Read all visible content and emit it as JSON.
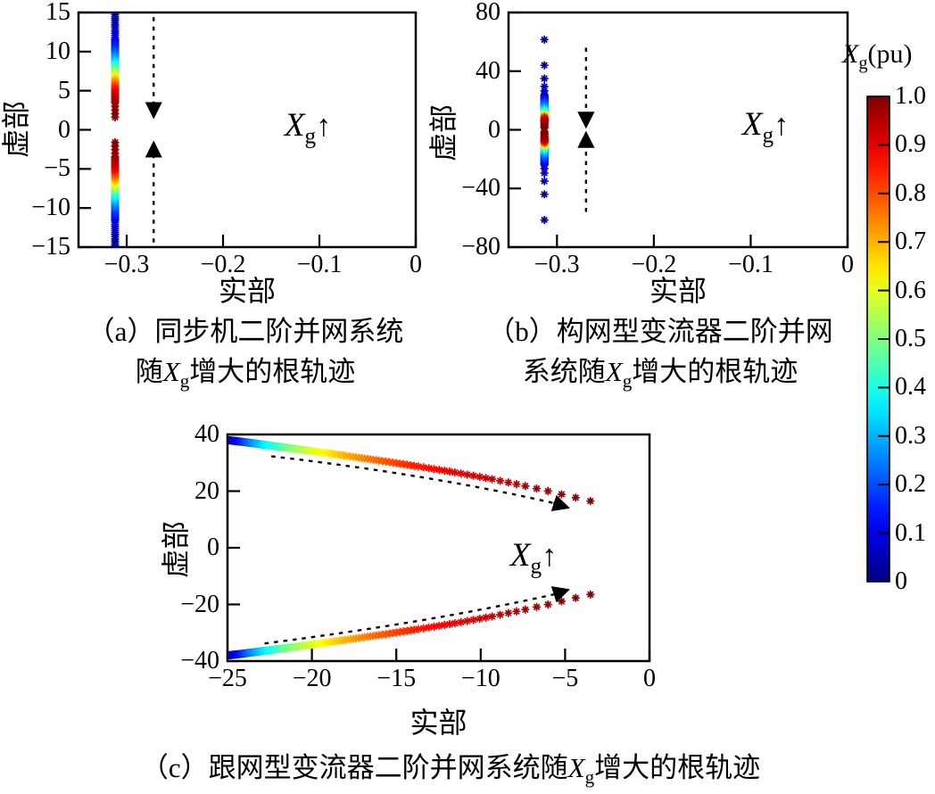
{
  "figure": {
    "background": "#ffffff",
    "line_color": "#000000"
  },
  "captions": {
    "a": {
      "line1": "（a）同步机二阶并网系统",
      "line2_prefix": "随",
      "var": "X",
      "var_sub": "g",
      "line2_suffix": "增大的根轨迹"
    },
    "b": {
      "line1": "（b）构网型变流器二阶并网",
      "line2_prefix": "系统随",
      "var": "X",
      "var_sub": "g",
      "line2_suffix": "增大的根轨迹"
    },
    "c": {
      "prefix": "（c）跟网型变流器二阶并网系统随",
      "var": "X",
      "var_sub": "g",
      "suffix": "增大的根轨迹"
    }
  },
  "annotation": {
    "var": "X",
    "sub": "g",
    "arrow": "↑"
  },
  "colorbar": {
    "title_var": "X",
    "title_sub": "g",
    "title_unit": "(pu)",
    "min": 0,
    "max": 1,
    "colormap": "jet",
    "tick_values": [
      1.0,
      0.9,
      0.8,
      0.7,
      0.6,
      0.5,
      0.4,
      0.3,
      0.2,
      0.1,
      0
    ],
    "tick_labels": [
      "1.0",
      "0.9",
      "0.8",
      "0.7",
      "0.6",
      "0.5",
      "0.4",
      "0.3",
      "0.2",
      "0.1",
      "0"
    ]
  },
  "chart_data": [
    {
      "id": "a",
      "type": "scatter",
      "title": "(a) 同步机二阶并网系统随Xg增大的根轨迹",
      "xlabel": "实部",
      "ylabel": "虚部",
      "xlim": [
        -0.35,
        0
      ],
      "ylim": [
        -15,
        15
      ],
      "xticks": [
        -0.3,
        -0.2,
        -0.1,
        0
      ],
      "xtick_labels": [
        "−0.3",
        "−0.2",
        "−0.1",
        "0"
      ],
      "yticks": [
        15,
        10,
        5,
        0,
        -5,
        -10,
        -15
      ],
      "ytick_labels": [
        "15",
        "10",
        "5",
        "0",
        "−5",
        "−10",
        "−15"
      ],
      "color_variable": "Xg (pu), 0=blue → 1=dark red",
      "series": [
        {
          "name": "conjugate pole pair, real ≈ −0.312, |imag| shrinks 15→1.6 as Xg→1",
          "real": -0.312,
          "mirror": true,
          "samples": 130,
          "xg_imag_profile": [
            [
              0,
              15
            ],
            [
              0.1,
              11.6
            ],
            [
              0.2,
              10.0
            ],
            [
              0.3,
              9.0
            ],
            [
              0.4,
              8.2
            ],
            [
              0.5,
              7.5
            ],
            [
              0.6,
              6.9
            ],
            [
              0.7,
              6.3
            ],
            [
              0.8,
              5.6
            ],
            [
              0.87,
              5.0
            ],
            [
              0.93,
              4.4
            ],
            [
              0.97,
              3.4
            ],
            [
              1.0,
              1.6
            ]
          ]
        }
      ],
      "arrows": [
        {
          "x": -0.272,
          "from_im": 14.4,
          "to_im": 3.6,
          "tip_im": 1.8
        },
        {
          "x": -0.272,
          "from_im": -14.4,
          "to_im": -3.6,
          "tip_im": -1.8
        }
      ],
      "annotation_pos": {
        "x": -0.112,
        "y": 0.2
      }
    },
    {
      "id": "b",
      "type": "scatter",
      "title": "(b) 构网型变流器二阶并网系统随Xg增大的根轨迹",
      "xlabel": "实部",
      "ylabel": "虚部",
      "xlim": [
        -0.35,
        0
      ],
      "ylim": [
        -80,
        80
      ],
      "xticks": [
        -0.3,
        -0.2,
        -0.1,
        0
      ],
      "xtick_labels": [
        "−0.3",
        "−0.2",
        "−0.1",
        "0"
      ],
      "yticks": [
        80,
        40,
        0,
        -40,
        -80
      ],
      "ytick_labels": [
        "80",
        "40",
        "0",
        "−40",
        "−80"
      ],
      "color_variable": "Xg (pu), 0=blue → 1=dark red",
      "series": [
        {
          "name": "conjugate pole pair, real ≈ −0.313, |imag| shrinks 24→1.2 over Xg 0.08→1",
          "real": -0.313,
          "mirror": true,
          "samples": 140,
          "xg_imag_profile": [
            [
              0.08,
              24
            ],
            [
              0.15,
              20
            ],
            [
              0.25,
              16
            ],
            [
              0.35,
              13.5
            ],
            [
              0.45,
              11.8
            ],
            [
              0.55,
              10.6
            ],
            [
              0.65,
              9.6
            ],
            [
              0.75,
              8.8
            ],
            [
              0.85,
              8.0
            ],
            [
              0.92,
              7.0
            ],
            [
              0.96,
              5.5
            ],
            [
              1.0,
              1.2
            ]
          ],
          "discrete": [
            [
              0.01,
              61.5
            ],
            [
              0.025,
              44
            ],
            [
              0.04,
              35
            ],
            [
              0.055,
              29.5
            ],
            [
              0.07,
              26.5
            ]
          ]
        }
      ],
      "arrows": [
        {
          "x": -0.27,
          "from_im": 56,
          "to_im": 12,
          "tip_im": 3
        },
        {
          "x": -0.27,
          "from_im": -56,
          "to_im": -12,
          "tip_im": -3
        }
      ],
      "annotation_pos": {
        "x": -0.085,
        "y": 2
      }
    },
    {
      "id": "c",
      "type": "scatter",
      "title": "(c) 跟网型变流器二阶并网系统随Xg增大的根轨迹",
      "xlabel": "实部",
      "ylabel": "虚部",
      "xlim": [
        -25,
        0
      ],
      "ylim": [
        -40,
        40
      ],
      "xticks": [
        -25,
        -20,
        -15,
        -10,
        -5,
        0
      ],
      "xtick_labels": [
        "−25",
        "−20",
        "−15",
        "−10",
        "−5",
        "0"
      ],
      "yticks": [
        40,
        20,
        0,
        -20,
        -40
      ],
      "ytick_labels": [
        "40",
        "20",
        "0",
        "−20",
        "−40"
      ],
      "color_variable": "Xg (pu), 0=blue → 1=dark red",
      "series": [
        {
          "name": "conjugate pole pair, curves from (−25, ±38) to (−3.5, ±16.5) as Xg→1",
          "mirror": true,
          "samples": 150,
          "xg_re_im_profile": [
            [
              0,
              -25,
              38
            ],
            [
              0.12,
              -24.4,
              37.6
            ],
            [
              0.25,
              -23.6,
              37
            ],
            [
              0.38,
              -22.6,
              36.2
            ],
            [
              0.5,
              -21.3,
              35.2
            ],
            [
              0.6,
              -19.8,
              34
            ],
            [
              0.7,
              -18,
              32.5
            ],
            [
              0.78,
              -16,
              30.8
            ],
            [
              0.85,
              -13.8,
              28.8
            ],
            [
              0.9,
              -11.5,
              26.6
            ],
            [
              0.94,
              -9.3,
              24.2
            ],
            [
              0.965,
              -7.5,
              22
            ],
            [
              0.98,
              -6,
              20
            ],
            [
              0.99,
              -4.8,
              18.3
            ],
            [
              1.0,
              -3.5,
              16.5
            ]
          ]
        }
      ],
      "arrows": [
        {
          "pts": [
            [
              -22.4,
              32.3
            ],
            [
              -13,
              25.8
            ],
            [
              -5.7,
              15.8
            ]
          ],
          "tip": [
            -4.9,
            14.3
          ]
        },
        {
          "pts": [
            [
              -22.8,
              -33.8
            ],
            [
              -13,
              -26.3
            ],
            [
              -5.7,
              -16.5
            ]
          ],
          "tip": [
            -4.9,
            -15.0
          ]
        }
      ],
      "annotation_pos": {
        "x": -6.9,
        "y": -3.8
      }
    }
  ]
}
